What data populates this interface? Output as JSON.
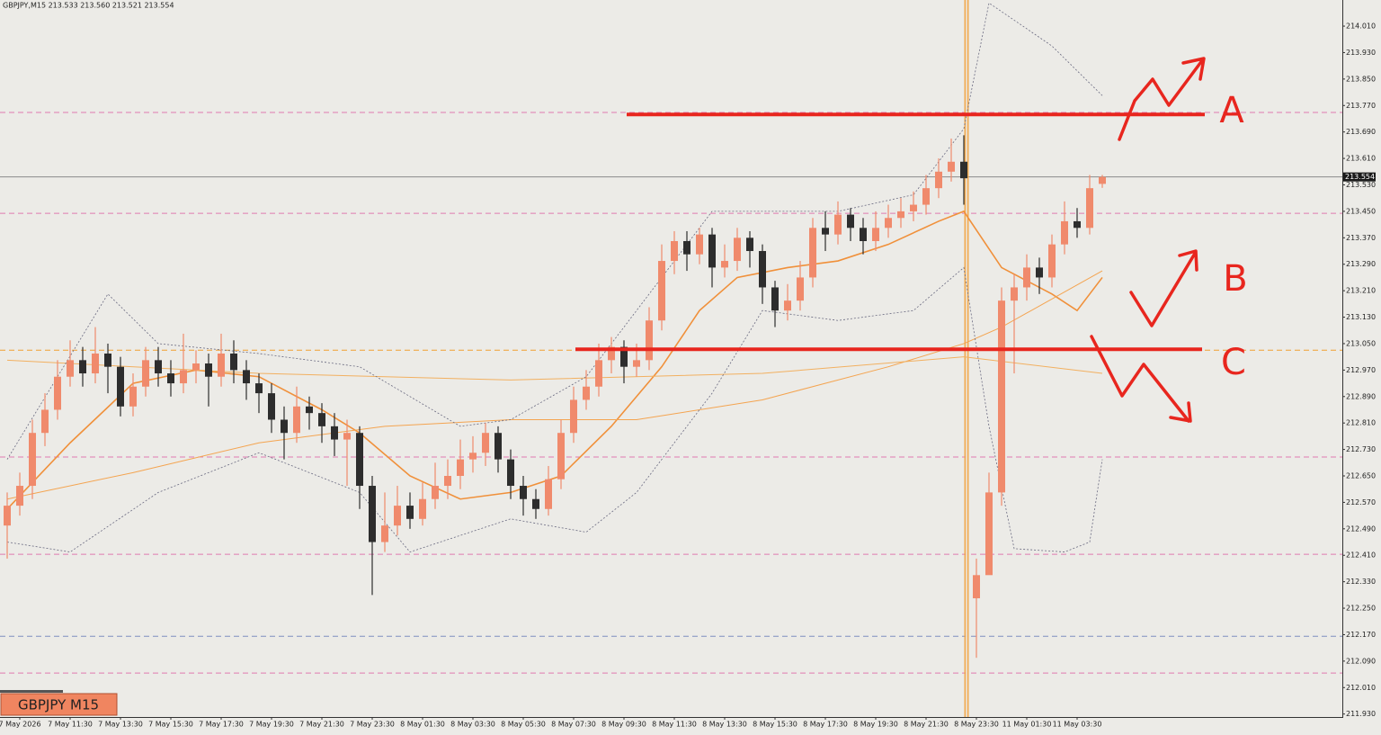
{
  "chart_data": {
    "type": "candlestick",
    "title": "GBPJPY,M15  213.533 213.560 213.521 213.554",
    "symbol_label": "GBPJPY M15",
    "categories": [
      null,
      "7 May 2026",
      null,
      null,
      null,
      "7 May 11:30",
      null,
      null,
      null,
      "7 May 13:30",
      null,
      null,
      null,
      "7 May 15:30",
      null,
      null,
      null,
      "7 May 17:30",
      null,
      null,
      null,
      "7 May 19:30",
      null,
      null,
      null,
      "7 May 21:30",
      null,
      null,
      null,
      "7 May 23:30",
      null,
      null,
      null,
      "8 May 01:30",
      null,
      null,
      null,
      "8 May 03:30",
      null,
      null,
      null,
      "8 May 05:30",
      null,
      null,
      null,
      "8 May 07:30",
      null,
      null,
      null,
      "8 May 09:30",
      null,
      null,
      null,
      "8 May 11:30",
      null,
      null,
      null,
      "8 May 13:30",
      null,
      null,
      null,
      "8 May 15:30",
      null,
      null,
      null,
      "8 May 17:30",
      null,
      null,
      null,
      "8 May 19:30",
      null,
      null,
      null,
      "8 May 21:30",
      null,
      null,
      null,
      "8 May 23:30",
      null,
      null,
      null,
      "11 May 01:30",
      null,
      null,
      null,
      "11 May 03:30",
      null,
      null
    ],
    "ohlc": {
      "up_color": "#f08a6c",
      "down_color": "#2d2d2d",
      "open": [
        212.5,
        212.56,
        212.62,
        212.78,
        212.85,
        212.95,
        213.0,
        212.96,
        213.02,
        212.98,
        212.86,
        212.92,
        213.0,
        212.96,
        212.93,
        212.97,
        212.99,
        212.95,
        213.02,
        212.97,
        212.93,
        212.9,
        212.82,
        212.78,
        212.86,
        212.84,
        212.8,
        212.76,
        212.78,
        212.62,
        212.45,
        212.5,
        212.56,
        212.52,
        212.58,
        212.62,
        212.65,
        212.7,
        212.72,
        212.78,
        212.7,
        212.62,
        212.58,
        212.55,
        212.64,
        212.78,
        212.88,
        212.92,
        213.0,
        213.04,
        212.98,
        213.0,
        213.12,
        213.3,
        213.36,
        213.32,
        213.38,
        213.28,
        213.3,
        213.37,
        213.33,
        213.22,
        213.15,
        213.18,
        213.25,
        213.4,
        213.38,
        213.44,
        213.4,
        213.36,
        213.4,
        213.43,
        213.45,
        213.47,
        213.52,
        213.57,
        213.6,
        212.28,
        212.35,
        212.6,
        213.18,
        213.22,
        213.28,
        213.25,
        213.35,
        213.42,
        213.4,
        213.533
      ],
      "high": [
        212.6,
        212.66,
        212.82,
        212.9,
        213.0,
        213.06,
        213.04,
        213.1,
        213.05,
        213.01,
        212.96,
        213.04,
        213.04,
        213.0,
        213.08,
        213.03,
        213.02,
        213.08,
        213.06,
        213.0,
        212.96,
        212.93,
        212.86,
        212.92,
        212.89,
        212.87,
        212.84,
        212.82,
        212.8,
        212.65,
        212.6,
        212.62,
        212.6,
        212.63,
        212.69,
        212.7,
        212.76,
        212.77,
        212.81,
        212.8,
        212.73,
        212.65,
        212.61,
        212.68,
        212.82,
        212.92,
        212.97,
        213.05,
        213.07,
        213.06,
        213.05,
        213.16,
        213.35,
        213.39,
        213.39,
        213.4,
        213.4,
        213.35,
        213.4,
        213.39,
        213.35,
        213.24,
        213.23,
        213.3,
        213.43,
        213.45,
        213.48,
        213.46,
        213.43,
        213.45,
        213.47,
        213.49,
        213.51,
        213.56,
        213.61,
        213.67,
        213.68,
        212.4,
        212.66,
        213.22,
        213.26,
        213.32,
        213.31,
        213.38,
        213.48,
        213.46,
        213.56,
        213.56
      ],
      "low": [
        212.4,
        212.53,
        212.58,
        212.74,
        212.82,
        212.92,
        212.92,
        212.93,
        212.9,
        212.83,
        212.83,
        212.89,
        212.92,
        212.89,
        212.9,
        212.93,
        212.86,
        212.92,
        212.93,
        212.88,
        212.84,
        212.78,
        212.7,
        212.75,
        212.79,
        212.75,
        212.71,
        212.62,
        212.55,
        212.29,
        212.42,
        212.47,
        212.49,
        212.5,
        212.55,
        212.58,
        212.61,
        212.66,
        212.68,
        212.66,
        212.58,
        212.53,
        212.52,
        212.53,
        212.61,
        212.75,
        212.85,
        212.89,
        212.96,
        212.93,
        212.95,
        212.97,
        213.09,
        213.26,
        213.27,
        213.29,
        213.22,
        213.25,
        213.27,
        213.28,
        213.17,
        213.1,
        213.12,
        213.15,
        213.22,
        213.33,
        213.35,
        213.36,
        213.32,
        213.33,
        213.37,
        213.4,
        213.42,
        213.44,
        213.49,
        213.54,
        213.47,
        212.1,
        212.4,
        212.56,
        212.96,
        213.18,
        213.2,
        213.22,
        213.32,
        213.37,
        213.38,
        213.521
      ],
      "close": [
        212.56,
        212.62,
        212.78,
        212.85,
        212.95,
        213.0,
        212.96,
        213.02,
        212.98,
        212.86,
        212.92,
        213.0,
        212.96,
        212.93,
        212.97,
        212.99,
        212.95,
        213.02,
        212.97,
        212.93,
        212.9,
        212.82,
        212.78,
        212.86,
        212.84,
        212.8,
        212.76,
        212.78,
        212.62,
        212.45,
        212.5,
        212.56,
        212.52,
        212.58,
        212.62,
        212.65,
        212.7,
        212.72,
        212.78,
        212.7,
        212.62,
        212.58,
        212.55,
        212.64,
        212.78,
        212.88,
        212.92,
        213.0,
        213.04,
        212.98,
        213.0,
        213.12,
        213.3,
        213.36,
        213.32,
        213.38,
        213.28,
        213.3,
        213.37,
        213.33,
        213.22,
        213.15,
        213.18,
        213.25,
        213.4,
        213.38,
        213.44,
        213.4,
        213.36,
        213.4,
        213.43,
        213.45,
        213.47,
        213.52,
        213.57,
        213.6,
        213.55,
        212.35,
        212.6,
        213.18,
        213.22,
        213.28,
        213.25,
        213.35,
        213.42,
        213.4,
        213.52,
        213.554
      ]
    },
    "overlays": [
      {
        "color": "#f0903a",
        "width": 1.6,
        "dash": "none",
        "x": [
          0,
          5,
          10,
          15,
          20,
          25,
          28,
          32,
          36,
          40,
          44,
          48,
          52,
          55,
          58,
          62,
          66,
          70,
          74,
          76,
          79,
          83,
          85,
          87
        ],
        "values": [
          212.55,
          212.75,
          212.93,
          212.97,
          212.95,
          212.85,
          212.78,
          212.65,
          212.58,
          212.6,
          212.65,
          212.8,
          212.98,
          213.15,
          213.25,
          213.28,
          213.3,
          213.35,
          213.42,
          213.45,
          213.28,
          213.2,
          213.15,
          213.25
        ]
      },
      {
        "color": "#f4a450",
        "width": 1,
        "dash": "none",
        "x": [
          0,
          10,
          20,
          30,
          40,
          50,
          60,
          70,
          76,
          79,
          87
        ],
        "values": [
          212.58,
          212.66,
          212.75,
          212.8,
          212.82,
          212.82,
          212.88,
          212.98,
          213.05,
          213.1,
          213.27
        ]
      },
      {
        "color": "#f2b060",
        "width": 1,
        "dash": "none",
        "x": [
          0,
          20,
          40,
          60,
          76,
          87
        ],
        "values": [
          213.0,
          212.96,
          212.94,
          212.96,
          213.01,
          212.96
        ]
      },
      {
        "color": "#6a6a80",
        "width": 0.8,
        "dash": "2 2",
        "x": [
          0,
          8,
          12,
          20,
          28,
          36,
          40,
          46,
          50,
          56,
          60,
          66,
          72,
          76,
          78,
          83,
          87
        ],
        "values": [
          212.7,
          213.2,
          213.05,
          213.02,
          212.98,
          212.8,
          212.82,
          212.95,
          213.15,
          213.45,
          213.45,
          213.45,
          213.5,
          213.7,
          214.08,
          213.95,
          213.8
        ]
      },
      {
        "color": "#6a6a80",
        "width": 0.8,
        "dash": "2 2",
        "x": [
          0,
          5,
          12,
          20,
          28,
          32,
          40,
          46,
          50,
          56,
          60,
          66,
          72,
          76,
          78,
          80,
          84,
          86,
          87
        ],
        "values": [
          212.45,
          212.42,
          212.6,
          212.72,
          212.6,
          212.42,
          212.52,
          212.48,
          212.6,
          212.9,
          213.15,
          213.12,
          213.15,
          213.28,
          212.8,
          212.43,
          212.42,
          212.45,
          212.7
        ]
      }
    ],
    "levels": [
      {
        "value": 213.749,
        "color": "#e07ab0",
        "dash": "6 4"
      },
      {
        "value": 213.444,
        "color": "#e07ab0",
        "dash": "6 4"
      },
      {
        "value": 213.03,
        "color": "#f0a030",
        "dash": "6 4"
      },
      {
        "value": 212.707,
        "color": "#e07ab0",
        "dash": "6 4"
      },
      {
        "value": 212.413,
        "color": "#e07ab0",
        "dash": "6 4"
      },
      {
        "value": 212.165,
        "color": "#7f8fc0",
        "dash": "6 4"
      },
      {
        "value": 212.054,
        "color": "#e07ab0",
        "dash": "6 4"
      }
    ],
    "last_price": 213.554,
    "annotations": [
      {
        "text": "A",
        "value": 213.743
      },
      {
        "text": "B"
      },
      {
        "text": "C",
        "value": 213.033
      }
    ],
    "ylim": [
      211.921,
      214.089
    ],
    "yticks": [
      {
        "value": 214.01,
        "label": "214.010"
      },
      {
        "value": 213.93,
        "label": "213.930"
      },
      {
        "value": 213.85,
        "label": "213.850"
      },
      {
        "value": 213.77,
        "label": "213.770"
      },
      {
        "value": 213.69,
        "label": "213.690"
      },
      {
        "value": 213.61,
        "label": "213.610"
      },
      {
        "value": 213.53,
        "label": "213.530"
      },
      {
        "value": 213.45,
        "label": "213.450"
      },
      {
        "value": 213.37,
        "label": "213.370"
      },
      {
        "value": 213.29,
        "label": "213.290"
      },
      {
        "value": 213.21,
        "label": "213.210"
      },
      {
        "value": 213.13,
        "label": "213.130"
      },
      {
        "value": 213.05,
        "label": "213.050"
      },
      {
        "value": 212.97,
        "label": "212.970"
      },
      {
        "value": 212.89,
        "label": "212.890"
      },
      {
        "value": 212.81,
        "label": "212.810"
      },
      {
        "value": 212.73,
        "label": "212.730"
      },
      {
        "value": 212.65,
        "label": "212.650"
      },
      {
        "value": 212.57,
        "label": "212.570"
      },
      {
        "value": 212.49,
        "label": "212.490"
      },
      {
        "value": 212.41,
        "label": "212.410"
      },
      {
        "value": 212.33,
        "label": "212.330"
      },
      {
        "value": 212.25,
        "label": "212.250"
      },
      {
        "value": 212.17,
        "label": "212.170"
      },
      {
        "value": 212.09,
        "label": "212.090"
      },
      {
        "value": 212.01,
        "label": "212.010"
      },
      {
        "value": 211.93,
        "label": "211.930"
      }
    ]
  }
}
